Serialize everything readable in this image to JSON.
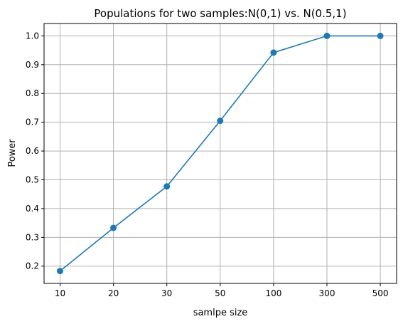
{
  "chart_data": {
    "type": "line",
    "title": "Populations for two samples:N(0,1) vs. N(0.5,1)",
    "xlabel": "samlpe size",
    "ylabel": "Power",
    "categories": [
      "10",
      "20",
      "30",
      "50",
      "100",
      "300",
      "500"
    ],
    "series": [
      {
        "values": [
          0.183,
          0.333,
          0.477,
          0.705,
          0.942,
          1.0,
          1.0
        ]
      }
    ],
    "ylim": [
      0.14,
      1.043
    ],
    "yticks": [
      "0.2",
      "0.3",
      "0.4",
      "0.5",
      "0.6",
      "0.7",
      "0.8",
      "0.9",
      "1.0"
    ],
    "grid": true,
    "marker": "circle",
    "line_color": "#1f77b4"
  }
}
